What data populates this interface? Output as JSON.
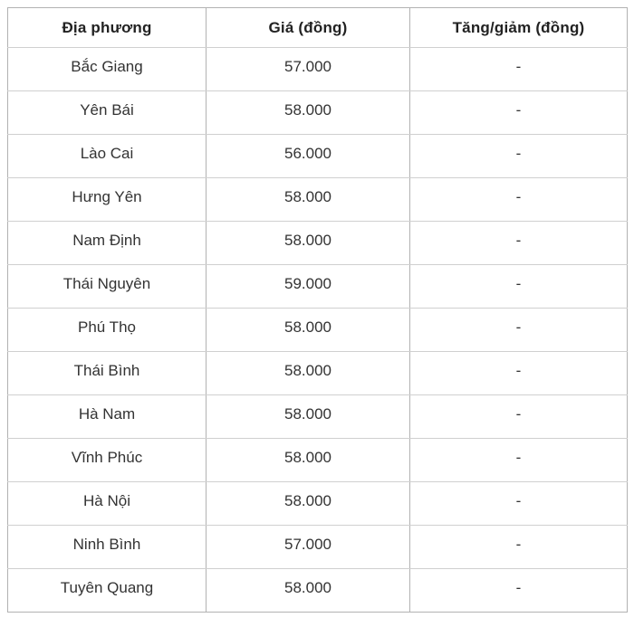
{
  "table": {
    "headers": [
      "Địa phương",
      "Giá (đồng)",
      "Tăng/giảm (đồng)"
    ],
    "rows": [
      {
        "location": "Bắc Giang",
        "price": "57.000",
        "change": "-"
      },
      {
        "location": "Yên Bái",
        "price": "58.000",
        "change": "-"
      },
      {
        "location": "Lào Cai",
        "price": "56.000",
        "change": "-"
      },
      {
        "location": "Hưng Yên",
        "price": "58.000",
        "change": "-"
      },
      {
        "location": "Nam Định",
        "price": "58.000",
        "change": "-"
      },
      {
        "location": "Thái Nguyên",
        "price": "59.000",
        "change": "-"
      },
      {
        "location": "Phú Thọ",
        "price": "58.000",
        "change": "-"
      },
      {
        "location": "Thái Bình",
        "price": "58.000",
        "change": "-"
      },
      {
        "location": "Hà Nam",
        "price": "58.000",
        "change": "-"
      },
      {
        "location": "Vĩnh Phúc",
        "price": "58.000",
        "change": "-"
      },
      {
        "location": "Hà Nội",
        "price": "58.000",
        "change": "-"
      },
      {
        "location": "Ninh Bình",
        "price": "57.000",
        "change": "-"
      },
      {
        "location": "Tuyên Quang",
        "price": "58.000",
        "change": "-"
      }
    ]
  },
  "colors": {
    "background": "#ffffff",
    "border_outer": "#b2b2b2",
    "border_row": "#d0d0d0",
    "header_text": "#222222",
    "body_text": "#333333"
  }
}
